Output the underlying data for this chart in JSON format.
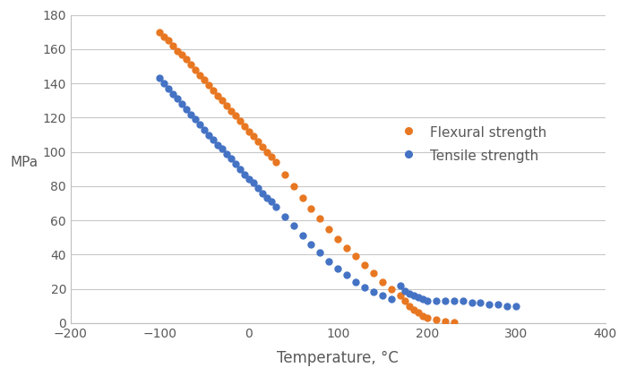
{
  "flexural_temp": [
    -100,
    -95,
    -90,
    -85,
    -80,
    -75,
    -70,
    -65,
    -60,
    -55,
    -50,
    -45,
    -40,
    -35,
    -30,
    -25,
    -20,
    -15,
    -10,
    -5,
    0,
    5,
    10,
    15,
    20,
    25,
    30,
    40,
    50,
    60,
    70,
    80,
    90,
    100,
    110,
    120,
    130,
    140,
    150,
    160,
    170,
    175,
    180,
    185,
    190,
    195,
    200,
    210,
    220,
    230
  ],
  "flexural_mpa": [
    170,
    167,
    165,
    162,
    159,
    157,
    154,
    151,
    148,
    145,
    142,
    139,
    136,
    133,
    130,
    127,
    124,
    121,
    118,
    115,
    112,
    109,
    106,
    103,
    100,
    97,
    94,
    87,
    80,
    73,
    67,
    61,
    55,
    49,
    44,
    39,
    34,
    29,
    24,
    20,
    16,
    13,
    10,
    8,
    6,
    4,
    3,
    2,
    1,
    0.5
  ],
  "tensile_temp": [
    -100,
    -95,
    -90,
    -85,
    -80,
    -75,
    -70,
    -65,
    -60,
    -55,
    -50,
    -45,
    -40,
    -35,
    -30,
    -25,
    -20,
    -15,
    -10,
    -5,
    0,
    5,
    10,
    15,
    20,
    25,
    30,
    40,
    50,
    60,
    70,
    80,
    90,
    100,
    110,
    120,
    130,
    140,
    150,
    160,
    170,
    175,
    180,
    185,
    190,
    195,
    200,
    210,
    220,
    230,
    240,
    250,
    260,
    270,
    280,
    290,
    300
  ],
  "tensile_mpa": [
    143,
    140,
    137,
    134,
    131,
    128,
    125,
    122,
    119,
    116,
    113,
    110,
    107,
    104,
    102,
    99,
    96,
    93,
    90,
    87,
    84,
    82,
    79,
    76,
    73,
    71,
    68,
    62,
    57,
    51,
    46,
    41,
    36,
    32,
    28,
    24,
    21,
    18,
    16,
    14,
    22,
    19,
    17,
    16,
    15,
    14,
    13,
    13,
    13,
    13,
    13,
    12,
    12,
    11,
    11,
    10,
    10
  ],
  "flexural_color": "#E87722",
  "tensile_color": "#4472C4",
  "ylabel": "MPa",
  "xlabel": "Temperature, °C",
  "legend_flexural": "Flexural strength",
  "legend_tensile": "Tensile strength",
  "xlim": [
    -200,
    400
  ],
  "ylim": [
    0,
    180
  ],
  "xticks": [
    -200,
    -100,
    0,
    100,
    200,
    300,
    400
  ],
  "yticks": [
    0,
    20,
    40,
    60,
    80,
    100,
    120,
    140,
    160,
    180
  ],
  "marker_size": 5,
  "linewidth": 0,
  "background_color": "#ffffff",
  "grid_color": "#c8c8c8"
}
